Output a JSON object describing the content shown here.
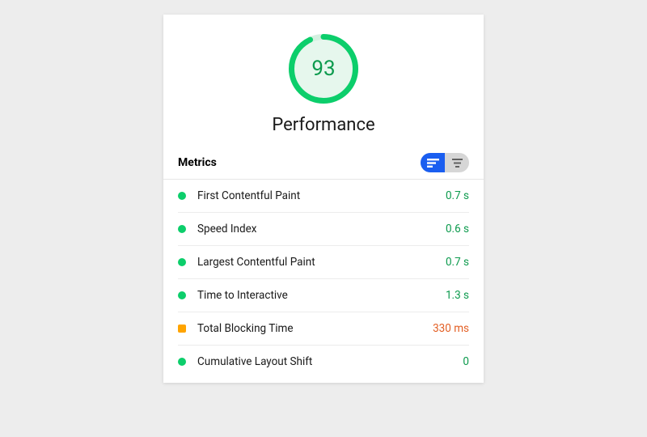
{
  "colors": {
    "bg": "#ededed",
    "card_bg": "#ffffff",
    "divider": "#e6e6e6",
    "good": "#0cce6b",
    "good_text": "#0c9a4d",
    "warn": "#ffa400",
    "warn_text": "#e35f24",
    "toggle_active": "#1a5ef0",
    "toggle_inactive": "#d6d6d6",
    "text": "#1a1a1a"
  },
  "gauge": {
    "score": "93",
    "title": "Performance",
    "fill_pct": 93,
    "ring_width": 7,
    "diameter": 86,
    "bg_color": "#e6f7ed",
    "track_color": "#d4f0e0",
    "arc_color": "#0cce6b",
    "score_color": "#0c9a4d",
    "score_fontsize": 26,
    "title_fontsize": 22
  },
  "metrics": {
    "title": "Metrics",
    "title_fontsize": 14,
    "toggle": {
      "active": "expanded",
      "active_bg": "#1a5ef0",
      "inactive_bg": "#d6d6d6"
    },
    "row_fontsize": 13.5,
    "items": [
      {
        "status": "good",
        "shape": "circle",
        "label": "First Contentful Paint",
        "value": "0.7 s",
        "value_color": "#0c9a4d",
        "dot_color": "#0cce6b"
      },
      {
        "status": "good",
        "shape": "circle",
        "label": "Speed Index",
        "value": "0.6 s",
        "value_color": "#0c9a4d",
        "dot_color": "#0cce6b"
      },
      {
        "status": "good",
        "shape": "circle",
        "label": "Largest Contentful Paint",
        "value": "0.7 s",
        "value_color": "#0c9a4d",
        "dot_color": "#0cce6b"
      },
      {
        "status": "good",
        "shape": "circle",
        "label": "Time to Interactive",
        "value": "1.3 s",
        "value_color": "#0c9a4d",
        "dot_color": "#0cce6b"
      },
      {
        "status": "warn",
        "shape": "square",
        "label": "Total Blocking Time",
        "value": "330 ms",
        "value_color": "#e35f24",
        "dot_color": "#ffa400"
      },
      {
        "status": "good",
        "shape": "circle",
        "label": "Cumulative Layout Shift",
        "value": "0",
        "value_color": "#0c9a4d",
        "dot_color": "#0cce6b"
      }
    ]
  }
}
